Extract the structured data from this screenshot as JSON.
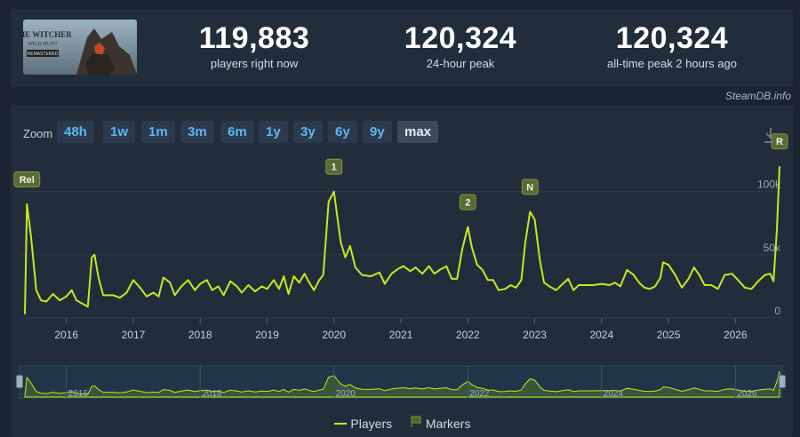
{
  "stats": [
    {
      "value": "119,883",
      "label": "players right now"
    },
    {
      "value": "120,324",
      "label": "24-hour peak"
    },
    {
      "value": "120,324",
      "label": "all-time peak 2 hours ago"
    }
  ],
  "credit": "SteamDB.info",
  "game_art": {
    "title": "THE WITCHER",
    "subtitle": "WILD HUNT",
    "badge": "REMASTERED"
  },
  "zoom": {
    "label": "Zoom",
    "options": [
      "48h",
      "1w",
      "1m",
      "3m",
      "6m",
      "1y",
      "3y",
      "6y",
      "9y",
      "max"
    ],
    "active": "max"
  },
  "legend": {
    "players": "Players",
    "markers": "Markers"
  },
  "colors": {
    "line": "#c5ea1f",
    "marker_bg": "#5a6a35",
    "button_text": "#5cb8f2",
    "navigator": "#2a4a66"
  },
  "chart_data": {
    "type": "line",
    "y_ticks": [
      "0",
      "50k",
      "100k"
    ],
    "ylim": [
      0,
      130000
    ],
    "x_ticks": [
      "2016",
      "2017",
      "2018",
      "2019",
      "2020",
      "2021",
      "2022",
      "2023",
      "2024",
      "2025",
      "2026"
    ],
    "xlim": [
      2015.3,
      2026.7
    ],
    "navigator_ticks": [
      "2016",
      "2018",
      "2020",
      "2022",
      "2024",
      "2026"
    ],
    "series": [
      {
        "name": "Players",
        "points": [
          [
            2015.38,
            3000
          ],
          [
            2015.41,
            90000
          ],
          [
            2015.47,
            65000
          ],
          [
            2015.55,
            22000
          ],
          [
            2015.62,
            14000
          ],
          [
            2015.7,
            13000
          ],
          [
            2015.8,
            19000
          ],
          [
            2015.9,
            14000
          ],
          [
            2016.0,
            17000
          ],
          [
            2016.08,
            22000
          ],
          [
            2016.15,
            14000
          ],
          [
            2016.25,
            11000
          ],
          [
            2016.32,
            9000
          ],
          [
            2016.38,
            48000
          ],
          [
            2016.42,
            50000
          ],
          [
            2016.48,
            32000
          ],
          [
            2016.55,
            18000
          ],
          [
            2016.7,
            18000
          ],
          [
            2016.8,
            16000
          ],
          [
            2016.9,
            20000
          ],
          [
            2017.0,
            30000
          ],
          [
            2017.1,
            24000
          ],
          [
            2017.2,
            17000
          ],
          [
            2017.3,
            20000
          ],
          [
            2017.38,
            17000
          ],
          [
            2017.45,
            32000
          ],
          [
            2017.55,
            28000
          ],
          [
            2017.62,
            18000
          ],
          [
            2017.72,
            25000
          ],
          [
            2017.82,
            30000
          ],
          [
            2017.92,
            22000
          ],
          [
            2018.0,
            27000
          ],
          [
            2018.1,
            30000
          ],
          [
            2018.18,
            22000
          ],
          [
            2018.27,
            25000
          ],
          [
            2018.35,
            18000
          ],
          [
            2018.45,
            29000
          ],
          [
            2018.55,
            25000
          ],
          [
            2018.62,
            20000
          ],
          [
            2018.72,
            26000
          ],
          [
            2018.82,
            21000
          ],
          [
            2018.92,
            25000
          ],
          [
            2019.0,
            23000
          ],
          [
            2019.1,
            30000
          ],
          [
            2019.18,
            23000
          ],
          [
            2019.25,
            33000
          ],
          [
            2019.32,
            19000
          ],
          [
            2019.4,
            33000
          ],
          [
            2019.48,
            28000
          ],
          [
            2019.56,
            35000
          ],
          [
            2019.62,
            29000
          ],
          [
            2019.7,
            22000
          ],
          [
            2019.78,
            30000
          ],
          [
            2019.84,
            34000
          ],
          [
            2019.92,
            92000
          ],
          [
            2020.0,
            100000
          ],
          [
            2020.1,
            60000
          ],
          [
            2020.17,
            48000
          ],
          [
            2020.24,
            57000
          ],
          [
            2020.32,
            40000
          ],
          [
            2020.42,
            34000
          ],
          [
            2020.55,
            33000
          ],
          [
            2020.68,
            36000
          ],
          [
            2020.76,
            27000
          ],
          [
            2020.86,
            35000
          ],
          [
            2020.96,
            39000
          ],
          [
            2021.04,
            41000
          ],
          [
            2021.14,
            37000
          ],
          [
            2021.22,
            40000
          ],
          [
            2021.32,
            35000
          ],
          [
            2021.42,
            41000
          ],
          [
            2021.5,
            35000
          ],
          [
            2021.58,
            38000
          ],
          [
            2021.68,
            41000
          ],
          [
            2021.76,
            31000
          ],
          [
            2021.84,
            31000
          ],
          [
            2021.92,
            55000
          ],
          [
            2022.0,
            72000
          ],
          [
            2022.06,
            56000
          ],
          [
            2022.14,
            42000
          ],
          [
            2022.22,
            38000
          ],
          [
            2022.3,
            30000
          ],
          [
            2022.38,
            30000
          ],
          [
            2022.46,
            22000
          ],
          [
            2022.56,
            23000
          ],
          [
            2022.64,
            26000
          ],
          [
            2022.72,
            24000
          ],
          [
            2022.8,
            30000
          ],
          [
            2022.86,
            60000
          ],
          [
            2022.93,
            84000
          ],
          [
            2023.0,
            78000
          ],
          [
            2023.08,
            45000
          ],
          [
            2023.14,
            28000
          ],
          [
            2023.22,
            25000
          ],
          [
            2023.32,
            22000
          ],
          [
            2023.42,
            27000
          ],
          [
            2023.5,
            31000
          ],
          [
            2023.58,
            22000
          ],
          [
            2023.66,
            26000
          ],
          [
            2023.76,
            26000
          ],
          [
            2023.88,
            26000
          ],
          [
            2024.0,
            27000
          ],
          [
            2024.12,
            26000
          ],
          [
            2024.2,
            28000
          ],
          [
            2024.28,
            25000
          ],
          [
            2024.38,
            38000
          ],
          [
            2024.48,
            34000
          ],
          [
            2024.56,
            28000
          ],
          [
            2024.64,
            24000
          ],
          [
            2024.72,
            23000
          ],
          [
            2024.8,
            25000
          ],
          [
            2024.88,
            32000
          ],
          [
            2024.92,
            44000
          ],
          [
            2025.0,
            42000
          ],
          [
            2025.1,
            34000
          ],
          [
            2025.2,
            24000
          ],
          [
            2025.3,
            31000
          ],
          [
            2025.38,
            40000
          ],
          [
            2025.46,
            34000
          ],
          [
            2025.54,
            26000
          ],
          [
            2025.64,
            26000
          ],
          [
            2025.74,
            23000
          ],
          [
            2025.84,
            34000
          ],
          [
            2025.95,
            35000
          ],
          [
            2026.04,
            30000
          ],
          [
            2026.14,
            24000
          ],
          [
            2026.24,
            23000
          ],
          [
            2026.34,
            29000
          ],
          [
            2026.44,
            34000
          ],
          [
            2026.52,
            35000
          ],
          [
            2026.57,
            29000
          ],
          [
            2026.62,
            70000
          ],
          [
            2026.66,
            120000
          ]
        ]
      }
    ],
    "markers": [
      {
        "label": "Rel",
        "x": 2015.41,
        "y": 90000
      },
      {
        "label": "1",
        "x": 2020.0,
        "y": 100000
      },
      {
        "label": "2",
        "x": 2022.0,
        "y": 72000
      },
      {
        "label": "N",
        "x": 2022.93,
        "y": 84000
      },
      {
        "label": "R",
        "x": 2026.66,
        "y": 120000
      }
    ],
    "grid": true
  }
}
